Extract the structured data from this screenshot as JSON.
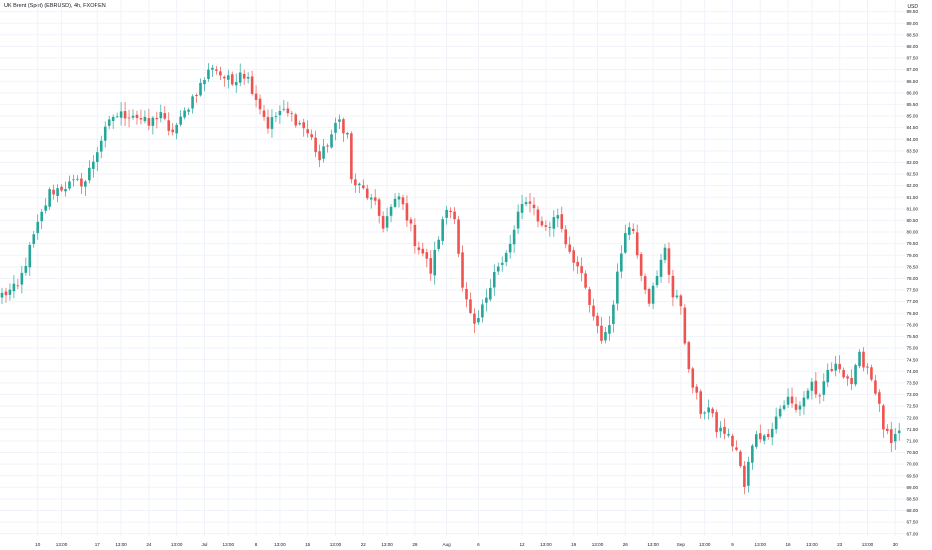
{
  "header": {
    "title": "UK Brent (Spot) (EBRUSD), 4h, FXOPEN",
    "currency": "USD"
  },
  "colors": {
    "up": "#26a69a",
    "down": "#ef5350",
    "grid": "#f0f3fa",
    "axis_text": "#131722"
  },
  "chart_data": {
    "type": "candlestick",
    "title": "UK Brent (Spot) (EBRUSD), 4h, FXOPEN",
    "ylim": [
      66.9,
      90.0
    ],
    "y_ticks": [
      "67.00",
      "67.50",
      "68.00",
      "68.50",
      "69.00",
      "69.50",
      "70.00",
      "70.50",
      "71.00",
      "71.50",
      "72.00",
      "72.50",
      "73.00",
      "73.50",
      "74.00",
      "74.50",
      "75.00",
      "75.50",
      "76.00",
      "76.50",
      "77.00",
      "77.50",
      "78.00",
      "78.50",
      "79.00",
      "79.50",
      "80.00",
      "80.50",
      "81.00",
      "81.50",
      "82.00",
      "82.50",
      "83.00",
      "83.50",
      "84.00",
      "84.50",
      "85.00",
      "85.50",
      "86.00",
      "86.50",
      "87.00",
      "87.50",
      "88.00",
      "88.50",
      "89.00",
      "89.50"
    ],
    "x_labels": [
      {
        "label": "10",
        "bar": 9
      },
      {
        "label": "13:00",
        "bar": 15
      },
      {
        "label": "17",
        "bar": 24
      },
      {
        "label": "13:00",
        "bar": 30
      },
      {
        "label": "24",
        "bar": 37
      },
      {
        "label": "13:00",
        "bar": 44
      },
      {
        "label": "Jul",
        "bar": 51
      },
      {
        "label": "13:00",
        "bar": 57
      },
      {
        "label": "8",
        "bar": 64
      },
      {
        "label": "13:00",
        "bar": 70
      },
      {
        "label": "15",
        "bar": 77
      },
      {
        "label": "13:00",
        "bar": 84
      },
      {
        "label": "22",
        "bar": 91
      },
      {
        "label": "13:00",
        "bar": 97
      },
      {
        "label": "29",
        "bar": 104
      },
      {
        "label": "Aug",
        "bar": 112
      },
      {
        "label": "6",
        "bar": 120
      },
      {
        "label": "12",
        "bar": 131
      },
      {
        "label": "13:00",
        "bar": 137
      },
      {
        "label": "19",
        "bar": 144
      },
      {
        "label": "13:00",
        "bar": 150
      },
      {
        "label": "26",
        "bar": 157
      },
      {
        "label": "13:00",
        "bar": 164
      },
      {
        "label": "Sep",
        "bar": 171
      },
      {
        "label": "13:00",
        "bar": 177
      },
      {
        "label": "9",
        "bar": 184
      },
      {
        "label": "13:00",
        "bar": 191
      },
      {
        "label": "16",
        "bar": 198
      },
      {
        "label": "13:00",
        "bar": 204
      },
      {
        "label": "23",
        "bar": 211
      },
      {
        "label": "13:00",
        "bar": 218
      },
      {
        "label": "30",
        "bar": 225
      }
    ],
    "anchors": [
      [
        0,
        77.3
      ],
      [
        4,
        77.6
      ],
      [
        8,
        79.8
      ],
      [
        12,
        81.7
      ],
      [
        16,
        82.0
      ],
      [
        21,
        82.2
      ],
      [
        25,
        84.0
      ],
      [
        28,
        85.0
      ],
      [
        33,
        85.1
      ],
      [
        37,
        84.6
      ],
      [
        40,
        85.2
      ],
      [
        42,
        84.2
      ],
      [
        45,
        84.8
      ],
      [
        48,
        85.8
      ],
      [
        51,
        86.6
      ],
      [
        53,
        87.2
      ],
      [
        55,
        86.8
      ],
      [
        58,
        86.4
      ],
      [
        60,
        87.0
      ],
      [
        62,
        86.6
      ],
      [
        64,
        85.8
      ],
      [
        67,
        84.6
      ],
      [
        70,
        85.2
      ],
      [
        73,
        85.0
      ],
      [
        76,
        84.5
      ],
      [
        78,
        84.0
      ],
      [
        80,
        83.1
      ],
      [
        83,
        84.2
      ],
      [
        85,
        84.8
      ],
      [
        87,
        84.2
      ],
      [
        88,
        82.2
      ],
      [
        91,
        81.8
      ],
      [
        94,
        81.1
      ],
      [
        96,
        80.3
      ],
      [
        98,
        81.0
      ],
      [
        100,
        81.5
      ],
      [
        102,
        80.7
      ],
      [
        104,
        79.6
      ],
      [
        106,
        79.1
      ],
      [
        108,
        78.3
      ],
      [
        110,
        79.8
      ],
      [
        112,
        81.0
      ],
      [
        114,
        80.8
      ],
      [
        116,
        77.5
      ],
      [
        119,
        75.8
      ],
      [
        121,
        76.7
      ],
      [
        124,
        78.4
      ],
      [
        126,
        78.6
      ],
      [
        128,
        79.4
      ],
      [
        130,
        80.8
      ],
      [
        133,
        81.4
      ],
      [
        136,
        80.2
      ],
      [
        138,
        80.3
      ],
      [
        140,
        80.8
      ],
      [
        142,
        79.6
      ],
      [
        145,
        78.5
      ],
      [
        147,
        77.5
      ],
      [
        149,
        76.2
      ],
      [
        151,
        75.4
      ],
      [
        153,
        76.0
      ],
      [
        155,
        78.1
      ],
      [
        157,
        80.2
      ],
      [
        159,
        80.1
      ],
      [
        161,
        78.3
      ],
      [
        163,
        77.1
      ],
      [
        165,
        78.0
      ],
      [
        167,
        79.4
      ],
      [
        169,
        77.2
      ],
      [
        171,
        76.9
      ],
      [
        173,
        73.9
      ],
      [
        176,
        72.3
      ],
      [
        178,
        72.4
      ],
      [
        180,
        71.5
      ],
      [
        182,
        71.4
      ],
      [
        185,
        70.6
      ],
      [
        187,
        69.0
      ],
      [
        188,
        70.0
      ],
      [
        190,
        71.4
      ],
      [
        192,
        71.1
      ],
      [
        194,
        71.7
      ],
      [
        196,
        72.4
      ],
      [
        198,
        72.8
      ],
      [
        200,
        72.3
      ],
      [
        202,
        72.9
      ],
      [
        204,
        73.5
      ],
      [
        206,
        72.7
      ],
      [
        208,
        74.0
      ],
      [
        211,
        74.2
      ],
      [
        214,
        73.5
      ],
      [
        216,
        74.6
      ],
      [
        218,
        74.2
      ],
      [
        220,
        73.2
      ],
      [
        222,
        71.6
      ],
      [
        224,
        70.8
      ],
      [
        226,
        71.3
      ]
    ]
  }
}
